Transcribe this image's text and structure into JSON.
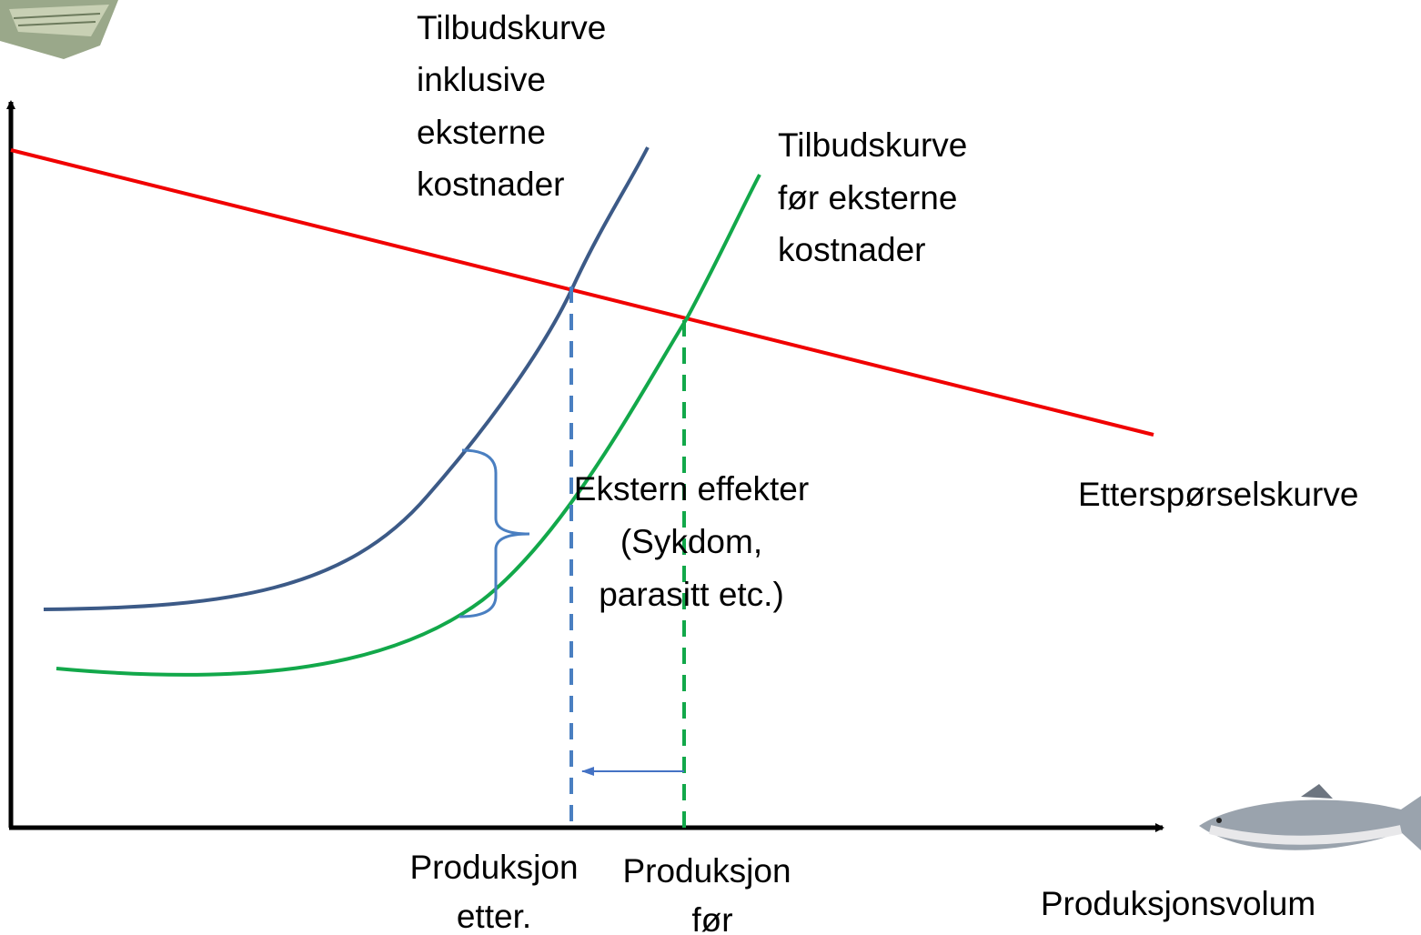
{
  "labels": {
    "supply_with_external": [
      "Tilbudskurve",
      "inklusive",
      "eksterne",
      "kostnader"
    ],
    "supply_before": [
      "Tilbudskurve",
      "før eksterne",
      "kostnader"
    ],
    "demand": "Etterspørselskurve",
    "external_effects": [
      "Ekstern effekter",
      "(Sykdom,",
      "parasitt etc.)"
    ],
    "production_after": [
      "Produksjon",
      "etter."
    ],
    "production_before": [
      "Produksjon",
      "før"
    ],
    "x_axis": "Produksjonsvolum"
  }
}
